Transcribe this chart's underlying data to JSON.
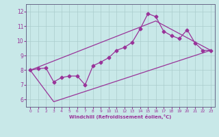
{
  "background_color": "#c8e8e8",
  "grid_color": "#aacccc",
  "line_color": "#993399",
  "xlim": [
    -0.5,
    23.5
  ],
  "ylim": [
    5.5,
    12.5
  ],
  "xticks": [
    0,
    1,
    2,
    3,
    4,
    5,
    6,
    7,
    8,
    9,
    10,
    11,
    12,
    13,
    14,
    15,
    16,
    17,
    18,
    19,
    20,
    21,
    22,
    23
  ],
  "yticks": [
    6,
    7,
    8,
    9,
    10,
    11,
    12
  ],
  "xlabel": "Windchill (Refroidissement éolien,°C)",
  "line1_x": [
    0,
    1,
    2,
    3,
    4,
    5,
    6,
    7,
    8,
    9,
    10,
    11,
    12,
    13,
    14,
    15,
    16,
    17,
    18,
    19,
    20,
    21,
    22,
    23
  ],
  "line1_y": [
    8.0,
    8.1,
    8.15,
    7.2,
    7.5,
    7.6,
    7.6,
    7.0,
    8.3,
    8.55,
    8.85,
    9.35,
    9.55,
    9.9,
    10.8,
    11.85,
    11.65,
    10.65,
    10.35,
    10.15,
    10.75,
    9.85,
    9.35,
    9.35
  ],
  "line2_x": [
    0,
    3,
    23
  ],
  "line2_y": [
    8.0,
    5.85,
    9.35
  ],
  "line3_x": [
    0,
    16,
    23
  ],
  "line3_y": [
    8.0,
    11.35,
    9.35
  ],
  "marker_size": 2.5,
  "linewidth": 0.9
}
